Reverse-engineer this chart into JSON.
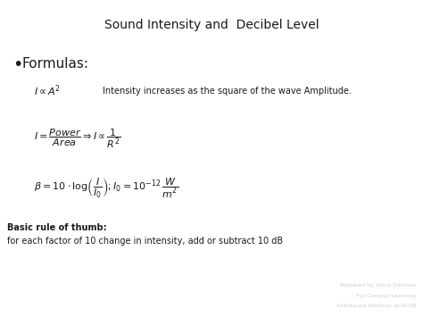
{
  "title": "Sound Intensity and  Decibel Level",
  "background_color": "#ffffff",
  "title_fontsize": 10,
  "bullet_label": "Formulas:",
  "bullet_fontsize": 11,
  "formula1_math": "$I \\propto A^2$",
  "formula1_desc": "Intensity increases as the square of the wave Amplitude.",
  "formula2_math": "$I = \\dfrac{\\mathit{Power}}{\\mathit{Area}} \\Rightarrow I \\propto \\dfrac{1}{R^2}$",
  "formula3_math": "$\\beta = 10 \\cdot \\log\\!\\left(\\dfrac{I}{I_0}\\right); I_0 = 10^{-12}\\, \\dfrac{W}{m^2}$",
  "basic_rule_bold": "Basic rule of thumb:",
  "basic_rule_text": "for each factor of 10 change in intensity, add or subtract 10 dB",
  "footnote1": "Prepared by Vince Zarcone",
  "footnote2": "For Campus Learning",
  "footnote3": "Assistance Services at UCSB",
  "footnote_color": "#cccccc",
  "footnote_fontsize": 4.5,
  "text_color": "#1a1a1a",
  "formula_fontsize": 8,
  "desc_fontsize": 7,
  "rule_fontsize": 7
}
